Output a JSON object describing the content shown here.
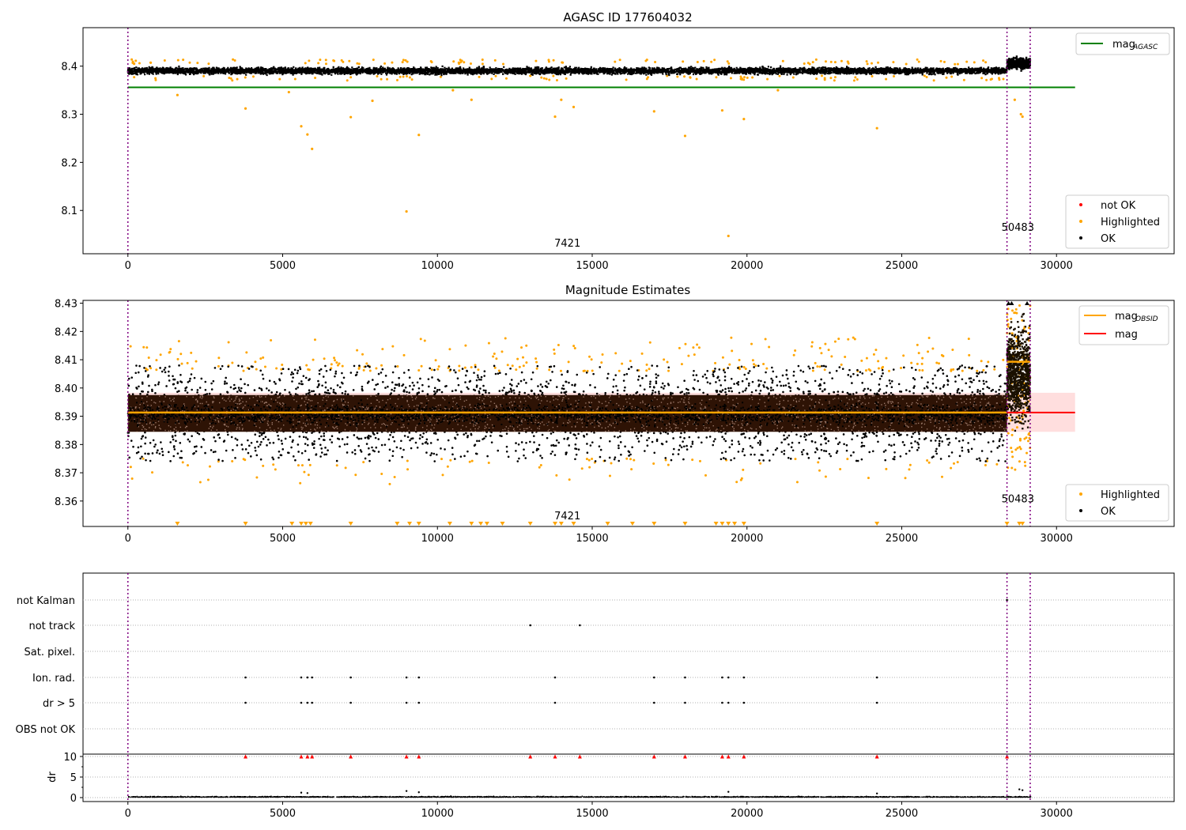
{
  "figure": {
    "panels": [
      {
        "title": "AGASC ID 177604032"
      },
      {
        "title": "Magnitude Estimates"
      },
      {
        "title": ""
      }
    ]
  },
  "chart_data": [
    {
      "type": "scatter",
      "title": "AGASC ID 177604032",
      "xlabel": "",
      "ylabel": "",
      "xlim": [
        -1450,
        33800
      ],
      "ylim": [
        8.01,
        8.48
      ],
      "x_ticks": [
        "0",
        "5000",
        "10000",
        "15000",
        "20000",
        "25000",
        "30000"
      ],
      "y_ticks": [
        "8.1",
        "8.2",
        "8.3",
        "8.4"
      ],
      "grid": false,
      "legend": [
        {
          "label": "mag",
          "sub": "AGASC",
          "color": "#008000",
          "kind": "line"
        }
      ],
      "legend_placement": "top-right",
      "legend2": [
        {
          "label": "not OK",
          "color": "#ff0000",
          "kind": "dot"
        },
        {
          "label": "Highlighted",
          "color": "#ffa500",
          "kind": "dot"
        },
        {
          "label": "OK",
          "color": "#000000",
          "kind": "dot"
        }
      ],
      "legend2_placement": "lower-right",
      "hline": {
        "y": 8.356,
        "x_range": [
          0,
          30600
        ],
        "color": "#008000"
      },
      "vlines": [
        0,
        28400,
        29150
      ],
      "vline_color": "#800080",
      "annotations": [
        {
          "text": "7421",
          "x": 14200,
          "y": 8.025
        },
        {
          "text": "50483",
          "x": 28750,
          "y": 8.058
        }
      ],
      "series": [
        {
          "name": "OK",
          "color": "#000000",
          "band": {
            "x_range": [
              0,
              28400
            ],
            "center": 8.392,
            "spread": 0.011
          },
          "segment2": {
            "x_range": [
              28400,
              29150
            ],
            "center": 8.408,
            "spread": 0.018
          }
        },
        {
          "name": "Highlighted",
          "color": "#ffa500",
          "points": [
            [
              200,
              8.405
            ],
            [
              1600,
              8.34
            ],
            [
              3800,
              8.312
            ],
            [
              5200,
              8.346
            ],
            [
              5600,
              8.275
            ],
            [
              5800,
              8.258
            ],
            [
              5950,
              8.228
            ],
            [
              7200,
              8.294
            ],
            [
              7900,
              8.328
            ],
            [
              9000,
              8.098
            ],
            [
              9400,
              8.257
            ],
            [
              10500,
              8.35
            ],
            [
              11100,
              8.33
            ],
            [
              13000,
              8.38
            ],
            [
              13800,
              8.295
            ],
            [
              14000,
              8.33
            ],
            [
              14400,
              8.315
            ],
            [
              17000,
              8.306
            ],
            [
              18000,
              8.255
            ],
            [
              19200,
              8.308
            ],
            [
              19400,
              8.047
            ],
            [
              19900,
              8.29
            ],
            [
              21000,
              8.35
            ],
            [
              24200,
              8.271
            ],
            [
              28650,
              8.33
            ],
            [
              28850,
              8.3
            ],
            [
              28900,
              8.295
            ]
          ]
        }
      ]
    },
    {
      "type": "scatter",
      "title": "Magnitude Estimates",
      "xlabel": "",
      "ylabel": "",
      "xlim": [
        -1450,
        33800
      ],
      "ylim": [
        8.351,
        8.431
      ],
      "x_ticks": [
        "0",
        "5000",
        "10000",
        "15000",
        "20000",
        "25000",
        "30000"
      ],
      "y_ticks": [
        "8.36",
        "8.37",
        "8.38",
        "8.39",
        "8.40",
        "8.41",
        "8.42",
        "8.43"
      ],
      "grid": false,
      "legend": [
        {
          "label": "mag",
          "sub": "OBSID",
          "color": "#ffa500",
          "kind": "line"
        },
        {
          "label": "mag",
          "sub": "",
          "color": "#ff0000",
          "kind": "line"
        }
      ],
      "legend_placement": "top-right",
      "legend2": [
        {
          "label": "Highlighted",
          "color": "#ffa500",
          "kind": "dot"
        },
        {
          "label": "OK",
          "color": "#000000",
          "kind": "dot"
        }
      ],
      "legend2_placement": "lower-right",
      "hline": {
        "y": 8.3913,
        "x_range": [
          0,
          30600
        ],
        "color": "#ff0000"
      },
      "shade": {
        "y_range": [
          8.3845,
          8.3983
        ],
        "x_range": [
          0,
          30600
        ],
        "color": "#ffd6d6"
      },
      "obsid_segments": [
        {
          "x_range": [
            0,
            28400
          ],
          "y": 8.3913
        },
        {
          "x_range": [
            28400,
            29150
          ],
          "y": 8.4093
        }
      ],
      "vlines": [
        0,
        28400,
        29150
      ],
      "vline_color": "#800080",
      "annotations": [
        {
          "text": "7421",
          "x": 14200,
          "y": 8.3535
        },
        {
          "text": "50483",
          "x": 28750,
          "y": 8.3595
        }
      ],
      "series": [
        {
          "name": "OK",
          "color": "#000000",
          "band": {
            "x_range": [
              0,
              28400
            ],
            "center": 8.391,
            "spread": 0.016
          },
          "segment2": {
            "x_range": [
              28400,
              29150
            ],
            "center": 8.405,
            "spread": 0.026
          }
        },
        {
          "name": "Highlighted",
          "color": "#ffa500",
          "band_upper": [
            8.406,
            8.418
          ],
          "band_lower": [
            8.366,
            8.375
          ],
          "clipped_x": [
            1600,
            3800,
            5300,
            5600,
            5750,
            5900,
            7200,
            8700,
            9100,
            9400,
            10400,
            11100,
            11400,
            11600,
            12100,
            13000,
            13800,
            14000,
            14400,
            15500,
            16300,
            17000,
            18000,
            19000,
            19200,
            19400,
            19600,
            19900,
            24200,
            28400,
            28800,
            28900
          ]
        }
      ]
    },
    {
      "type": "scatter",
      "title": "",
      "xlabel": "",
      "ylabel": "dr",
      "xlim": [
        -1450,
        33800
      ],
      "ylim": [
        -1,
        12
      ],
      "x_ticks": [
        "0",
        "5000",
        "10000",
        "15000",
        "20000",
        "25000",
        "30000"
      ],
      "y_ticks": [
        "0",
        "5",
        "10"
      ],
      "flag_labels": [
        "not Kalman",
        "not track",
        "Sat. pixel.",
        "Ion. rad.",
        "dr > 5",
        "OBS not OK"
      ],
      "flags": {
        "not Kalman": [
          28400
        ],
        "not track": [
          13000,
          14600
        ],
        "Sat. pixel.": [],
        "Ion. rad.": [
          3800,
          5600,
          5800,
          5950,
          7200,
          9000,
          9400,
          13800,
          17000,
          18000,
          19200,
          19400,
          19900,
          24200
        ],
        "dr > 5": [
          3800,
          5600,
          5800,
          5950,
          7200,
          9000,
          9400,
          13800,
          17000,
          18000,
          19200,
          19400,
          19900,
          24200
        ],
        "OBS not OK": []
      },
      "dr_clipped_x": [
        3800,
        5600,
        5800,
        5950,
        7200,
        9000,
        9400,
        13000,
        13800,
        14600,
        17000,
        18000,
        19200,
        19400,
        19900,
        24200,
        28400
      ],
      "dr_clipped_value": 10,
      "dr_series": {
        "x_range": [
          0,
          29150
        ],
        "center": 0.2,
        "spread": 0.35
      },
      "vlines": [
        0,
        28400,
        29150
      ],
      "vline_color": "#800080"
    }
  ]
}
